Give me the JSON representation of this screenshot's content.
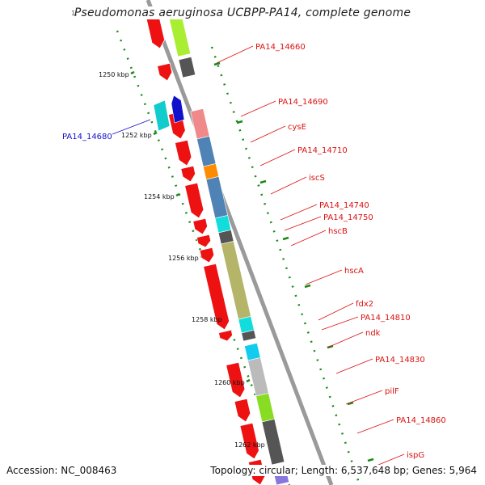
{
  "title": "Pseudomonas aeruginosa UCBPP-PA14, complete genome",
  "corner_label": "1:",
  "footer": {
    "accession": "Accession: NC_008463",
    "topology": "Topology: circular; Length: 6,537,648 bp; Genes: 5,964"
  },
  "kbp_labels": [
    "1250 kbp",
    "1252 kbp",
    "1254 kbp",
    "1256 kbp",
    "1258 kbp",
    "1260 kbp",
    "1262 kbp"
  ],
  "forward_labels": [
    "PA14_14660",
    "PA14_14690",
    "cysE",
    "PA14_14710",
    "iscS",
    "PA14_14740",
    "PA14_14750",
    "hscB",
    "hscA",
    "fdx2",
    "PA14_14810",
    "ndk",
    "PA14_14830",
    "pilF",
    "PA14_14860",
    "ispG"
  ],
  "reverse_labels": [
    "PA14_14680"
  ],
  "colors": {
    "forward_label": "#dd1111",
    "reverse_label": "#1111cc",
    "gene_arrow": "#ee1111",
    "backbone": "#888888",
    "tick": "#1a8a1a"
  },
  "feature_colors": [
    "#aaee33",
    "#555555",
    "#f08a8a",
    "#4f82b5",
    "#ff8c00",
    "#4f82b5",
    "#11dddd",
    "#555555",
    "#b5b56a",
    "#11dddd",
    "#555555",
    "#11ccee",
    "#bbbbbb",
    "#88dd22",
    "#555555",
    "#8877dd"
  ]
}
